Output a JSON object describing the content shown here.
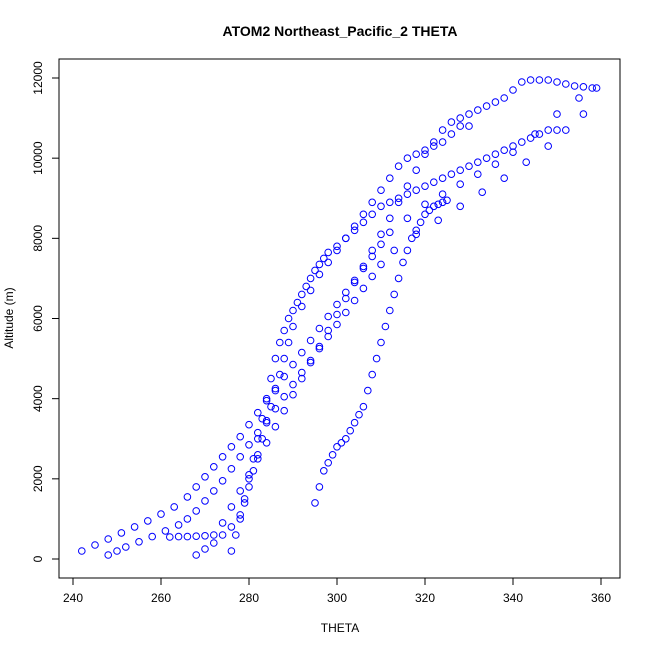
{
  "chart_data": {
    "type": "scatter",
    "title": "ATOM2 Northeast_Pacific_2 THETA",
    "xlabel": "THETA",
    "ylabel": "Altitude (m)",
    "xlim": [
      240,
      360
    ],
    "ylim": [
      0,
      12000
    ],
    "x_ticks": [
      240,
      260,
      280,
      300,
      320,
      340,
      360
    ],
    "y_ticks": [
      0,
      2000,
      4000,
      6000,
      8000,
      10000,
      12000
    ],
    "grid": false,
    "marker": "open-circle",
    "point_color": "#0000ff",
    "series": [
      {
        "x": [
          242,
          245,
          248,
          251,
          254,
          257,
          260,
          263,
          266,
          268,
          270,
          272,
          274,
          276,
          278,
          280,
          282,
          284,
          286,
          288,
          290,
          292,
          294,
          296,
          298,
          300,
          302,
          304,
          306,
          308,
          310,
          312,
          316,
          320,
          324,
          328,
          332,
          336,
          340,
          345,
          350,
          355,
          359
        ],
        "y": [
          200,
          350,
          500,
          650,
          800,
          950,
          1120,
          1300,
          1550,
          1800,
          2050,
          2300,
          2550,
          2800,
          3050,
          3350,
          3650,
          3950,
          4250,
          4550,
          4850,
          5150,
          5450,
          5750,
          6050,
          6350,
          6650,
          6950,
          7250,
          7550,
          7850,
          8150,
          8500,
          8850,
          9100,
          9350,
          9600,
          9850,
          10150,
          10600,
          11100,
          11500,
          11750
        ]
      },
      {
        "x": [
          248,
          250,
          252,
          255,
          258,
          261,
          264,
          266,
          268,
          270,
          272,
          274,
          276,
          278,
          280,
          282,
          284,
          286,
          288,
          290,
          292,
          294,
          296,
          298,
          300,
          302,
          304,
          306,
          308,
          310,
          313,
          318,
          323,
          328,
          333,
          338,
          343,
          348,
          352,
          356
        ],
        "y": [
          100,
          200,
          300,
          430,
          560,
          700,
          850,
          1000,
          1200,
          1450,
          1700,
          1950,
          2250,
          2550,
          2850,
          3150,
          3450,
          3750,
          4050,
          4350,
          4650,
          4950,
          5250,
          5550,
          5850,
          6150,
          6450,
          6750,
          7050,
          7350,
          7700,
          8100,
          8450,
          8800,
          9150,
          9500,
          9900,
          10300,
          10700,
          11100
        ]
      },
      {
        "x": [
          268,
          270,
          272,
          274,
          276,
          278,
          279,
          280,
          281,
          282,
          283,
          284,
          285,
          286,
          287,
          288,
          289,
          290,
          291,
          292,
          293,
          294,
          295,
          296,
          297,
          298,
          300,
          302,
          304,
          306,
          308,
          310,
          312,
          314,
          316,
          318,
          320,
          322,
          324,
          326,
          328,
          330,
          332,
          334,
          336,
          338,
          340,
          342,
          344,
          346,
          348,
          350
        ],
        "y": [
          100,
          250,
          400,
          600,
          800,
          1100,
          1500,
          2000,
          2500,
          3000,
          3500,
          4000,
          4500,
          5000,
          5400,
          5700,
          6000,
          6200,
          6400,
          6600,
          6800,
          7000,
          7200,
          7350,
          7500,
          7650,
          7800,
          8000,
          8200,
          8400,
          8600,
          8800,
          8900,
          9000,
          9100,
          9200,
          9300,
          9400,
          9500,
          9600,
          9700,
          9800,
          9900,
          10000,
          10100,
          10200,
          10300,
          10400,
          10500,
          10600,
          10700,
          10700
        ]
      },
      {
        "x": [
          276,
          277,
          278,
          279,
          280,
          281,
          282,
          283,
          284,
          285,
          286,
          287,
          288,
          289,
          290,
          292,
          294,
          296,
          298,
          300,
          302,
          304,
          306,
          308,
          310,
          312,
          314,
          316,
          318,
          320,
          322,
          324,
          326,
          328,
          330
        ],
        "y": [
          200,
          600,
          1000,
          1400,
          1800,
          2200,
          2600,
          3000,
          3400,
          3800,
          4200,
          4600,
          5000,
          5400,
          5800,
          6300,
          6700,
          7100,
          7400,
          7700,
          8000,
          8300,
          8600,
          8900,
          9200,
          9500,
          9800,
          10000,
          10100,
          10200,
          10300,
          10400,
          10600,
          10800,
          10800
        ]
      },
      {
        "x": [
          262,
          264,
          266,
          268,
          270,
          272,
          274,
          276,
          278,
          280,
          282,
          284,
          286,
          288,
          290,
          292,
          294,
          296,
          298,
          300,
          302,
          304,
          306,
          308,
          310,
          312,
          314,
          316,
          318,
          320,
          322,
          324,
          326,
          328,
          330,
          332,
          334,
          336,
          338,
          340,
          342,
          344,
          346,
          348,
          350,
          352,
          354,
          356,
          358
        ],
        "y": [
          550,
          560,
          560,
          570,
          580,
          600,
          900,
          1300,
          1700,
          2100,
          2500,
          2900,
          3300,
          3700,
          4100,
          4500,
          4900,
          5300,
          5700,
          6100,
          6500,
          6900,
          7300,
          7700,
          8100,
          8500,
          8900,
          9300,
          9700,
          10100,
          10400,
          10700,
          10900,
          11000,
          11100,
          11200,
          11300,
          11400,
          11500,
          11700,
          11900,
          11950,
          11950,
          11950,
          11900,
          11850,
          11800,
          11780,
          11750
        ]
      },
      {
        "x": [
          295,
          296,
          297,
          298,
          299,
          300,
          301,
          302,
          303,
          304,
          305,
          306,
          307,
          308,
          309,
          310,
          311,
          312,
          313,
          314,
          315,
          316,
          317,
          318,
          319,
          320,
          321,
          322,
          323,
          324,
          325
        ],
        "y": [
          1400,
          1800,
          2200,
          2400,
          2600,
          2800,
          2900,
          3000,
          3200,
          3400,
          3600,
          3800,
          4200,
          4600,
          5000,
          5400,
          5800,
          6200,
          6600,
          7000,
          7400,
          7700,
          8000,
          8200,
          8400,
          8600,
          8700,
          8800,
          8850,
          8900,
          8950
        ]
      }
    ]
  }
}
